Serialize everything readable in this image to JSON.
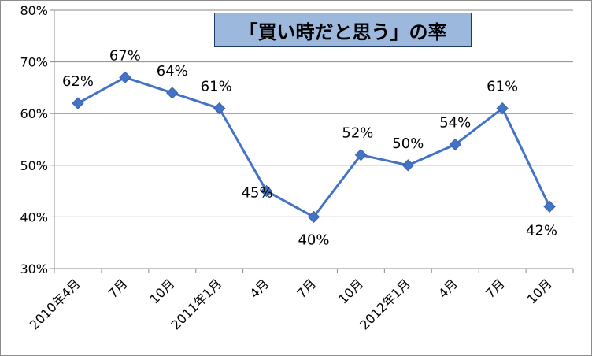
{
  "chart_data": {
    "type": "line",
    "title": "「買い時だと思う」の率",
    "categories": [
      "2010年4月",
      "7月",
      "10月",
      "2011年1月",
      "4月",
      "7月",
      "10月",
      "2012年1月",
      "4月",
      "7月",
      "10月"
    ],
    "series": [
      {
        "values": [
          62,
          67,
          64,
          61,
          45,
          40,
          52,
          50,
          54,
          61,
          42
        ],
        "data_labels": [
          "62%",
          "67%",
          "64%",
          "61%",
          "45%",
          "40%",
          "52%",
          "50%",
          "54%",
          "61%",
          "42%"
        ]
      }
    ],
    "ylim": [
      30,
      80
    ],
    "yticks": [
      30,
      40,
      50,
      60,
      70,
      80
    ],
    "ytick_labels": [
      "30%",
      "40%",
      "50%",
      "60%",
      "70%",
      "80%"
    ],
    "grid": true,
    "legend": "none",
    "colors": {
      "line": "#4472c4",
      "marker": "#4472c4",
      "title_bg": "#9cb8dd"
    }
  }
}
